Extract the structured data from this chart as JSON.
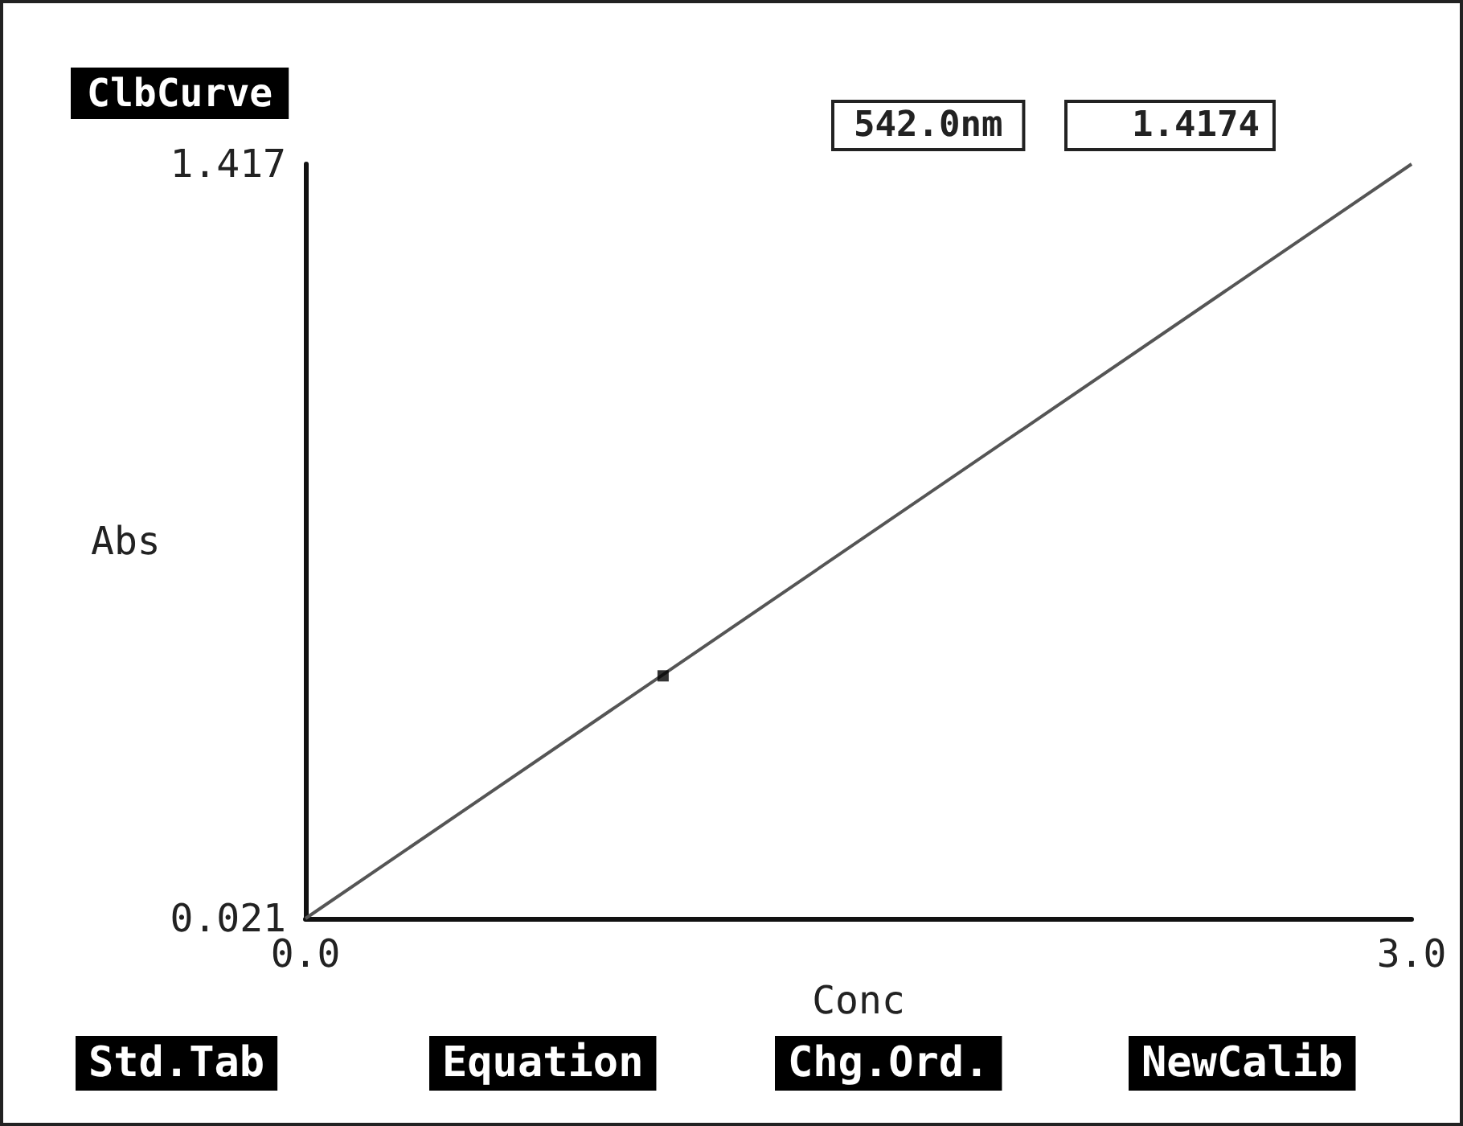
{
  "chart_data": {
    "type": "line",
    "title": "ClbCurve",
    "xlabel": "Conc",
    "ylabel": "Abs",
    "series": [
      {
        "color": "#555555",
        "x": [
          0,
          3.0
        ],
        "values": [
          0.021,
          1.417
        ],
        "marker": "none"
      },
      {
        "type": "scatter",
        "color": "#000000",
        "x": [
          0.97
        ],
        "values": [
          0.47
        ],
        "marker": "square"
      }
    ],
    "xlim": [
      0,
      3.0
    ],
    "xticks": [
      {
        "value": 0,
        "label": "0.0"
      },
      {
        "value": 3.0,
        "label": "3.0"
      }
    ],
    "ylim": [
      0.021,
      1.417
    ],
    "yticks": [
      0.021,
      1.417
    ],
    "grid": false,
    "annotations": [
      "542.0nm",
      "1.4174",
      "Std.Tab",
      "Equation",
      "Chg.Ord.",
      "NewCalib"
    ]
  }
}
